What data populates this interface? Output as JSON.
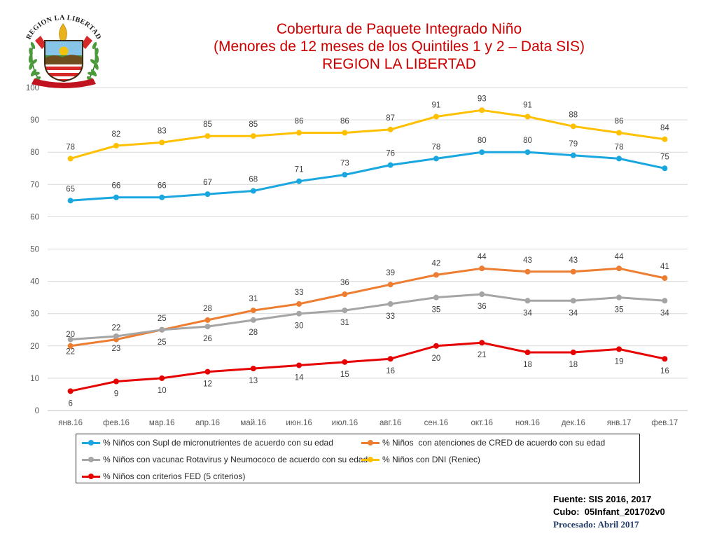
{
  "logo": {
    "text": "REGION LA LIBERTAD"
  },
  "chart_data": {
    "type": "line",
    "title": [
      "Cobertura de Paquete Integrado Niño",
      "(Menores de 12 meses de los Quintiles 1 y 2 – Data SIS)",
      "REGION LA LIBERTAD"
    ],
    "categories": [
      "янв.16",
      "фев.16",
      "мар.16",
      "апр.16",
      "май.16",
      "июн.16",
      "июл.16",
      "авг.16",
      "сен.16",
      "окт.16",
      "ноя.16",
      "дек.16",
      "янв.17",
      "фев.17"
    ],
    "ylim": [
      0,
      100
    ],
    "yticks": [
      0,
      10,
      20,
      30,
      40,
      50,
      60,
      70,
      80,
      90,
      100
    ],
    "grid": true,
    "legend": "bottom",
    "data_labels": true,
    "series": [
      {
        "name": "% Niños con Supl de micronutrientes de acuerdo con su edad",
        "color": "#1aa7e0",
        "values": [
          65,
          66,
          66,
          67,
          68,
          71,
          73,
          76,
          78,
          80,
          80,
          79,
          78,
          75
        ]
      },
      {
        "name": "% Niños  con atenciones de CRED de acuerdo con su edad",
        "color": "#ed7d31",
        "values": [
          20,
          22,
          25,
          28,
          31,
          33,
          36,
          39,
          42,
          44,
          43,
          43,
          44,
          41
        ]
      },
      {
        "name": "% Niños con vacunac Rotavirus y Neumococo de acuerdo con su edad",
        "color": "#a5a5a5",
        "values": [
          22,
          23,
          25,
          26,
          28,
          30,
          31,
          33,
          35,
          36,
          34,
          34,
          35,
          34
        ]
      },
      {
        "name": "% Niños con DNI (Reniec)",
        "color": "#ffc000",
        "values": [
          78,
          82,
          83,
          85,
          85,
          86,
          86,
          87,
          91,
          93,
          91,
          88,
          86,
          84
        ]
      },
      {
        "name": "% Niños con criterios FED (5 criterios)",
        "color": "#e60000",
        "values": [
          6,
          9,
          10,
          12,
          13,
          14,
          15,
          16,
          20,
          21,
          18,
          18,
          19,
          16
        ]
      }
    ]
  },
  "footer": {
    "source": "Fuente: SIS 2016, 2017",
    "cube": "Cubo:  05Infant_201702v0",
    "processed": "Procesado: Abril 2017"
  }
}
